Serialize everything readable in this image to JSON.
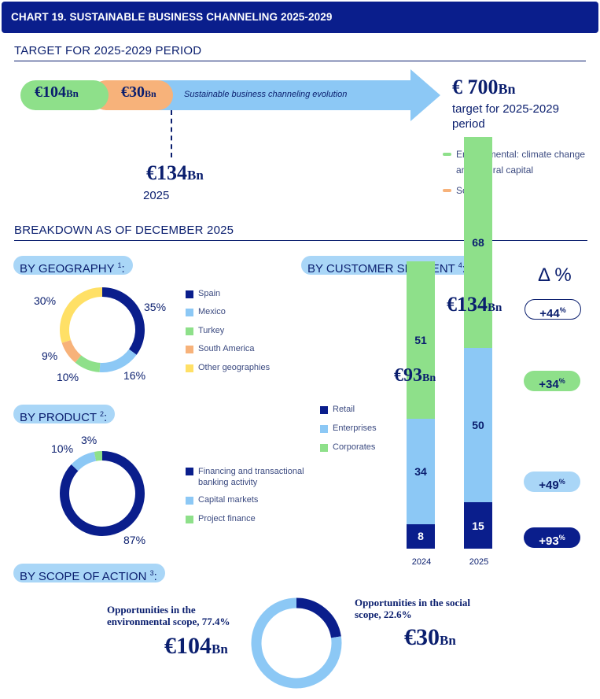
{
  "title": "CHART 19. SUSTAINABLE BUSINESS CHANNELING 2025-2029",
  "target": {
    "heading": "TARGET FOR 2025-2029 PERIOD",
    "env_value": "€104",
    "social_value": "€30",
    "unit": "Bn",
    "arrow_label": "Sustainable business channeling evolution",
    "goal_value": "€ 700",
    "goal_caption": "target for 2025-2029 period",
    "achieved_value": "€134",
    "achieved_year": "2025",
    "legend": [
      {
        "label": "Environmental: climate change and natural capital",
        "color": "#8ee08a"
      },
      {
        "label": "Social",
        "color": "#f7b27a"
      }
    ]
  },
  "breakdown": {
    "heading": "BREAKDOWN AS OF DECEMBER 2025",
    "geography_title": "BY GEOGRAPHY",
    "geography_note": "1",
    "product_title": "BY PRODUCT",
    "product_note": "2",
    "segment_title": "BY CUSTOMER SEGMENT",
    "segment_note": "4",
    "scope_title": "BY SCOPE OF ACTION",
    "scope_note": "3",
    "delta_header": "Δ %"
  },
  "chart_data": [
    {
      "type": "pie",
      "title": "BY GEOGRAPHY",
      "labels": [
        "Spain",
        "Mexico",
        "Turkey",
        "South America",
        "Other geographies"
      ],
      "values": [
        35,
        16,
        10,
        9,
        30
      ],
      "value_labels": [
        "35%",
        "16%",
        "10%",
        "9%",
        "30%"
      ],
      "colors": [
        "#0a1e8c",
        "#8cc8f5",
        "#8ee08a",
        "#f7b27a",
        "#ffe066"
      ]
    },
    {
      "type": "pie",
      "title": "BY PRODUCT",
      "labels": [
        "Financing and transactional banking activity",
        "Capital markets",
        "Project finance"
      ],
      "values": [
        87,
        10,
        3
      ],
      "value_labels": [
        "87%",
        "10%",
        "3%"
      ],
      "colors": [
        "#0a1e8c",
        "#8cc8f5",
        "#8ee08a"
      ]
    },
    {
      "type": "bar",
      "title": "BY CUSTOMER SEGMENT",
      "categories": [
        "2024",
        "2025"
      ],
      "totals": [
        "€93",
        "€134"
      ],
      "unit": "Bn",
      "series": [
        {
          "name": "Retail",
          "values": [
            8,
            15
          ],
          "color": "#0a1e8c"
        },
        {
          "name": "Enterprises",
          "values": [
            34,
            50
          ],
          "color": "#8cc8f5"
        },
        {
          "name": "Corporates",
          "values": [
            51,
            68
          ],
          "color": "#8ee08a"
        }
      ],
      "deltas": [
        {
          "label": "+44",
          "suffix": "%",
          "style": "outline"
        },
        {
          "label": "+34",
          "suffix": "%",
          "style": "green"
        },
        {
          "label": "+49",
          "suffix": "%",
          "style": "light"
        },
        {
          "label": "+93",
          "suffix": "%",
          "style": "dark"
        }
      ]
    },
    {
      "type": "pie",
      "title": "BY SCOPE OF ACTION",
      "labels": [
        "Opportunities in the environmental scope, 77.4%",
        "Opportunities in the social scope, 22.6%"
      ],
      "values": [
        77.4,
        22.6
      ],
      "amounts": [
        "€104",
        "€30"
      ],
      "unit": "Bn",
      "colors": [
        "#8cc8f5",
        "#0a1e8c"
      ]
    }
  ]
}
